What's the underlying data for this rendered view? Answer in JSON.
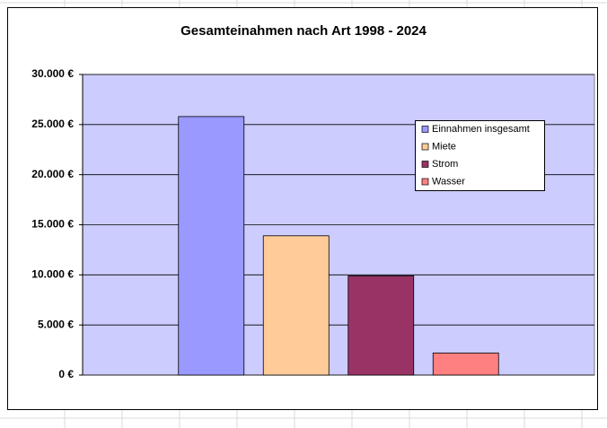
{
  "chart_data": {
    "type": "bar",
    "title": "Gesamteinahmen nach Art 1998 - 2024",
    "categories": [
      null
    ],
    "series": [
      {
        "name": "Einnahmen insgesamt",
        "color": "#9999ff",
        "values": [
          25800
        ]
      },
      {
        "name": "Miete",
        "color": "#ffcc99",
        "values": [
          13900
        ]
      },
      {
        "name": "Strom",
        "color": "#993366",
        "values": [
          9900
        ]
      },
      {
        "name": "Wasser",
        "color": "#ff8080",
        "values": [
          2200
        ]
      }
    ],
    "ylim": [
      0,
      30000
    ],
    "yticks": [
      {
        "value": 0,
        "label": "0 €"
      },
      {
        "value": 5000,
        "label": "5.000 €"
      },
      {
        "value": 10000,
        "label": "10.000 €"
      },
      {
        "value": 15000,
        "label": "15.000 €"
      },
      {
        "value": 20000,
        "label": "20.000 €"
      },
      {
        "value": 25000,
        "label": "25.000 €"
      },
      {
        "value": 30000,
        "label": "30.000 €"
      }
    ],
    "grid": true,
    "plot_background": "#ccccff"
  }
}
